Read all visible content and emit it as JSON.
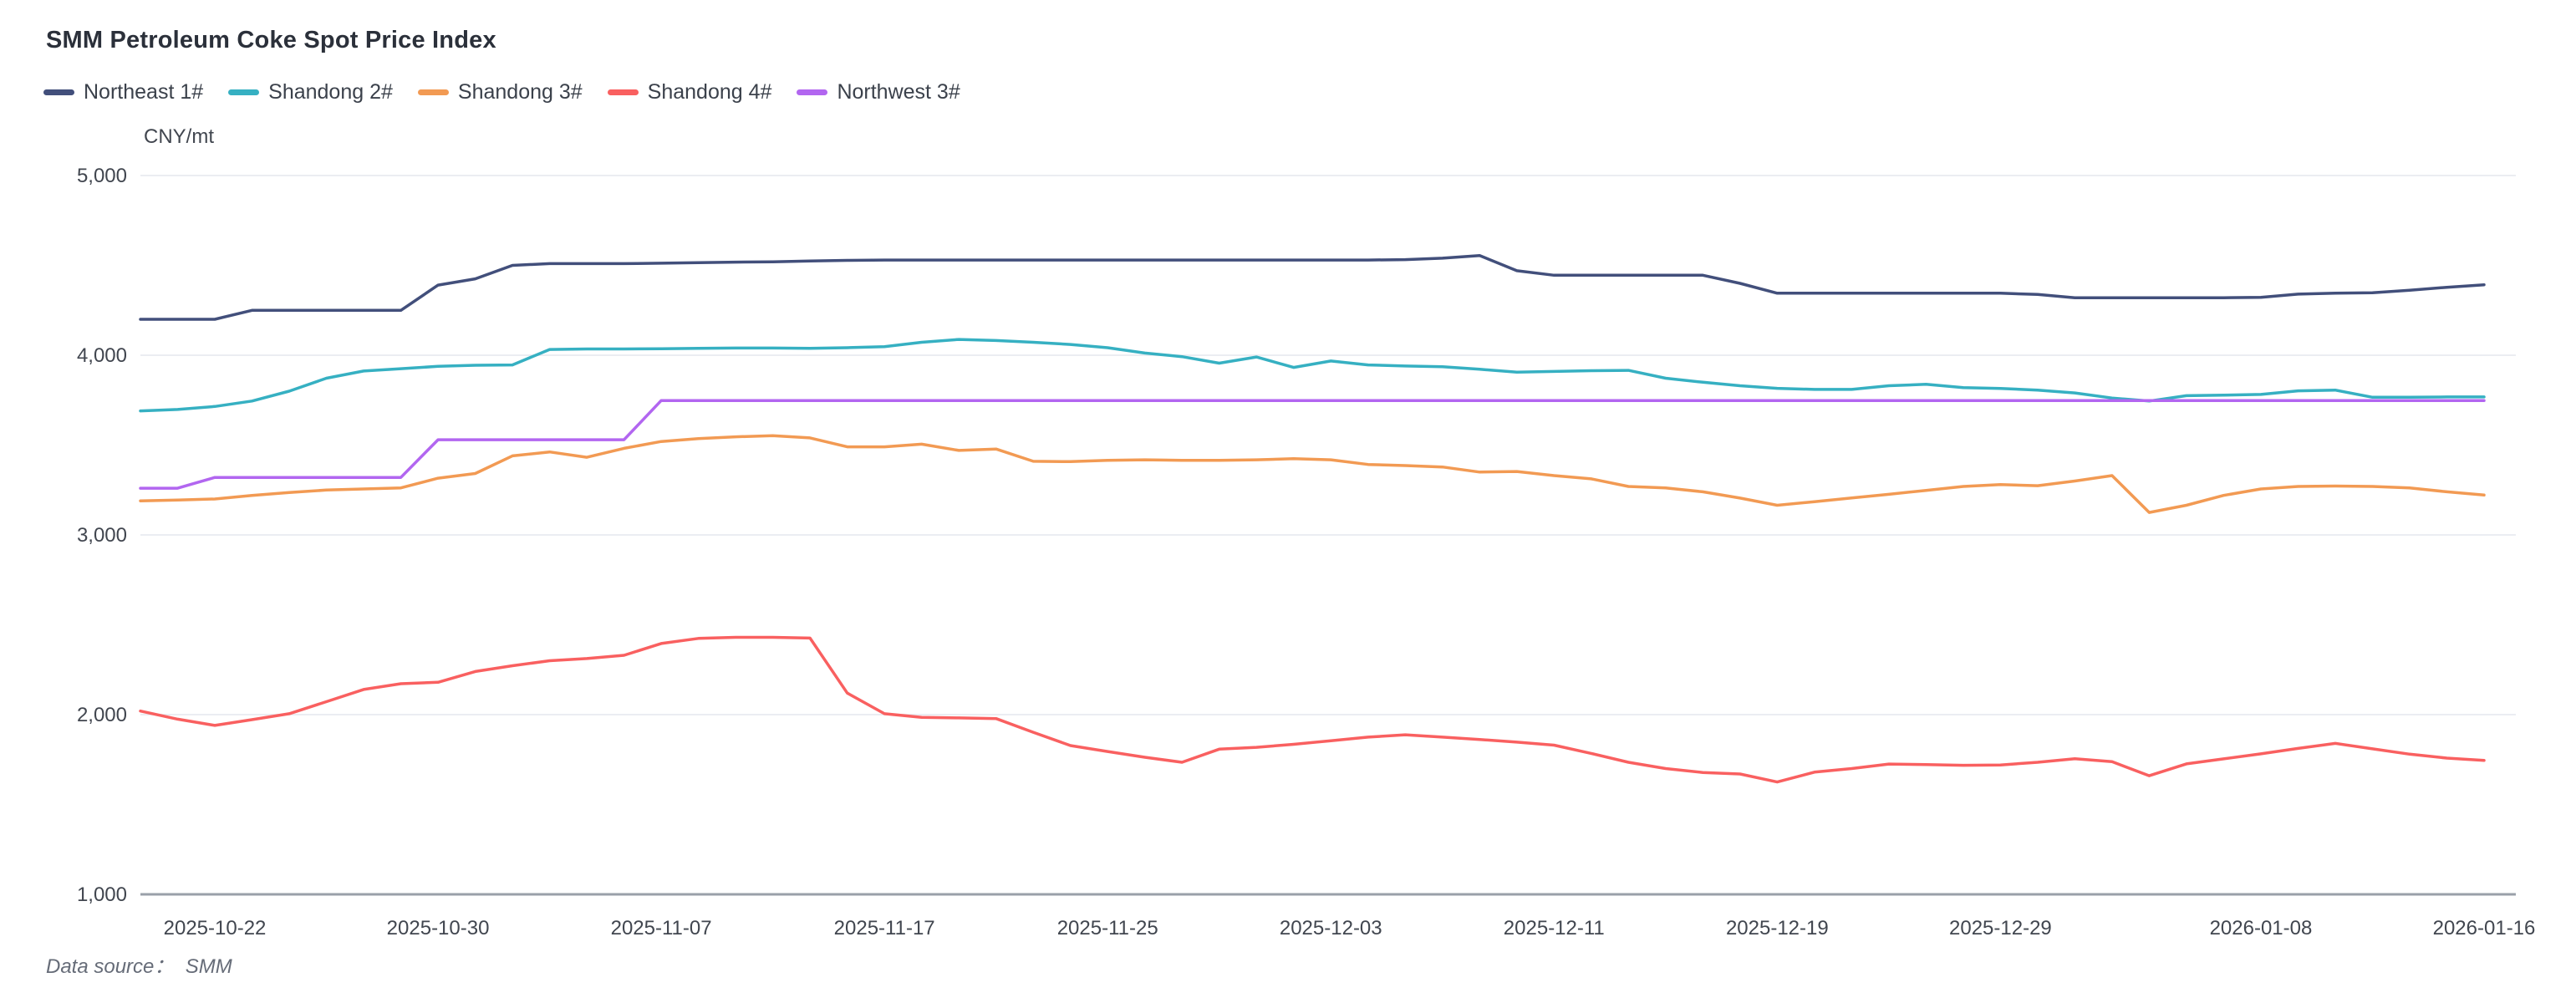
{
  "title": "SMM Petroleum Coke Spot Price Index",
  "footer": {
    "source": "Data source：  SMM"
  },
  "colors": {
    "grid": "#ebedf2",
    "axis_line": "#9aa0a9",
    "tick_text": "#41464f"
  },
  "chart_data": {
    "type": "line",
    "title": "SMM Petroleum Coke Spot Price Index",
    "xlabel": "",
    "ylabel": "CNY/mt",
    "ylim": [
      1000,
      5000
    ],
    "grid": true,
    "legend_position": "top-left",
    "yticks": [
      {
        "value": 5000,
        "label": "5,000"
      },
      {
        "value": 4000,
        "label": "4,000"
      },
      {
        "value": 3000,
        "label": "3,000"
      },
      {
        "value": 2000,
        "label": "2,000"
      },
      {
        "value": 1000,
        "label": "1,000"
      }
    ],
    "x": [
      "2025-10-20",
      "2025-10-21",
      "2025-10-22",
      "2025-10-23",
      "2025-10-24",
      "2025-10-27",
      "2025-10-28",
      "2025-10-29",
      "2025-10-30",
      "2025-10-31",
      "2025-11-03",
      "2025-11-04",
      "2025-11-05",
      "2025-11-06",
      "2025-11-07",
      "2025-11-10",
      "2025-11-11",
      "2025-11-12",
      "2025-11-13",
      "2025-11-14",
      "2025-11-17",
      "2025-11-18",
      "2025-11-19",
      "2025-11-20",
      "2025-11-21",
      "2025-11-24",
      "2025-11-25",
      "2025-11-26",
      "2025-11-27",
      "2025-11-28",
      "2025-12-01",
      "2025-12-02",
      "2025-12-03",
      "2025-12-04",
      "2025-12-05",
      "2025-12-08",
      "2025-12-09",
      "2025-12-10",
      "2025-12-11",
      "2025-12-12",
      "2025-12-15",
      "2025-12-16",
      "2025-12-17",
      "2025-12-18",
      "2025-12-19",
      "2025-12-22",
      "2025-12-23",
      "2025-12-24",
      "2025-12-25",
      "2025-12-26",
      "2025-12-29",
      "2025-12-30",
      "2025-12-31",
      "2026-01-02",
      "2026-01-05",
      "2026-01-06",
      "2026-01-07",
      "2026-01-08",
      "2026-01-09",
      "2026-01-12",
      "2026-01-13",
      "2026-01-14",
      "2026-01-15",
      "2026-01-16"
    ],
    "xticks": [
      {
        "index": 2,
        "label": "2025-10-22"
      },
      {
        "index": 8,
        "label": "2025-10-30"
      },
      {
        "index": 14,
        "label": "2025-11-07"
      },
      {
        "index": 20,
        "label": "2025-11-17"
      },
      {
        "index": 26,
        "label": "2025-11-25"
      },
      {
        "index": 32,
        "label": "2025-12-03"
      },
      {
        "index": 38,
        "label": "2025-12-11"
      },
      {
        "index": 44,
        "label": "2025-12-19"
      },
      {
        "index": 50,
        "label": "2025-12-29"
      },
      {
        "index": 57,
        "label": "2026-01-08"
      },
      {
        "index": 63,
        "label": "2026-01-16"
      }
    ],
    "series": [
      {
        "name": "Northeast 1#",
        "color": "#424f7b",
        "values": [
          4200,
          4200,
          4200,
          4250,
          4250,
          4250,
          4250,
          4250,
          4390,
          4425,
          4500,
          4510,
          4510,
          4510,
          4512,
          4515,
          4518,
          4520,
          4524,
          4528,
          4530,
          4530,
          4530,
          4530,
          4530,
          4530,
          4530,
          4530,
          4530,
          4530,
          4530,
          4530,
          4530,
          4530,
          4532,
          4540,
          4555,
          4470,
          4445,
          4445,
          4445,
          4445,
          4445,
          4400,
          4345,
          4345,
          4345,
          4345,
          4345,
          4345,
          4345,
          4338,
          4320,
          4320,
          4320,
          4320,
          4320,
          4322,
          4340,
          4345,
          4348,
          4362,
          4378,
          4392
        ]
      },
      {
        "name": "Shandong 2#",
        "color": "#36b0c2",
        "values": [
          3690,
          3698,
          3715,
          3745,
          3800,
          3872,
          3912,
          3925,
          3938,
          3944,
          3946,
          4032,
          4035,
          4035,
          4036,
          4038,
          4040,
          4040,
          4038,
          4042,
          4048,
          4072,
          4088,
          4082,
          4072,
          4060,
          4042,
          4012,
          3992,
          3956,
          3990,
          3932,
          3968,
          3946,
          3940,
          3936,
          3922,
          3906,
          3910,
          3914,
          3916,
          3872,
          3850,
          3830,
          3816,
          3810,
          3810,
          3830,
          3838,
          3820,
          3815,
          3806,
          3790,
          3762,
          3745,
          3775,
          3778,
          3782,
          3802,
          3806,
          3766,
          3766,
          3768,
          3768
        ]
      },
      {
        "name": "Shandong 3#",
        "color": "#f29a53",
        "values": [
          3190,
          3194,
          3200,
          3220,
          3236,
          3250,
          3256,
          3262,
          3316,
          3342,
          3440,
          3462,
          3432,
          3482,
          3520,
          3536,
          3546,
          3552,
          3540,
          3490,
          3490,
          3505,
          3470,
          3478,
          3410,
          3408,
          3415,
          3418,
          3415,
          3415,
          3418,
          3424,
          3418,
          3392,
          3386,
          3378,
          3350,
          3353,
          3330,
          3312,
          3270,
          3262,
          3240,
          3205,
          3165,
          3185,
          3206,
          3226,
          3248,
          3270,
          3280,
          3274,
          3300,
          3330,
          3125,
          3165,
          3220,
          3256,
          3270,
          3272,
          3270,
          3262,
          3240,
          3222
        ]
      },
      {
        "name": "Shandong 4#",
        "color": "#f96060",
        "values": [
          2020,
          1975,
          1940,
          1972,
          2005,
          2072,
          2140,
          2172,
          2180,
          2240,
          2272,
          2300,
          2312,
          2330,
          2396,
          2424,
          2430,
          2430,
          2426,
          2120,
          2005,
          1985,
          1982,
          1978,
          1902,
          1828,
          1795,
          1763,
          1735,
          1808,
          1818,
          1835,
          1855,
          1875,
          1888,
          1875,
          1862,
          1847,
          1830,
          1784,
          1735,
          1700,
          1678,
          1670,
          1625,
          1680,
          1700,
          1725,
          1722,
          1718,
          1720,
          1735,
          1755,
          1738,
          1660,
          1726,
          1754,
          1782,
          1812,
          1840,
          1810,
          1780,
          1758,
          1745
        ]
      },
      {
        "name": "Northwest 3#",
        "color": "#b266f0",
        "values": [
          3260,
          3260,
          3320,
          3320,
          3320,
          3320,
          3320,
          3320,
          3530,
          3530,
          3530,
          3530,
          3530,
          3530,
          3748,
          3748,
          3748,
          3748,
          3748,
          3748,
          3748,
          3748,
          3748,
          3748,
          3748,
          3748,
          3748,
          3748,
          3748,
          3748,
          3748,
          3748,
          3748,
          3748,
          3748,
          3748,
          3748,
          3748,
          3748,
          3748,
          3748,
          3748,
          3748,
          3748,
          3748,
          3748,
          3748,
          3748,
          3748,
          3748,
          3748,
          3748,
          3748,
          3748,
          3748,
          3748,
          3748,
          3748,
          3748,
          3748,
          3748,
          3748,
          3748,
          3748
        ]
      }
    ]
  }
}
